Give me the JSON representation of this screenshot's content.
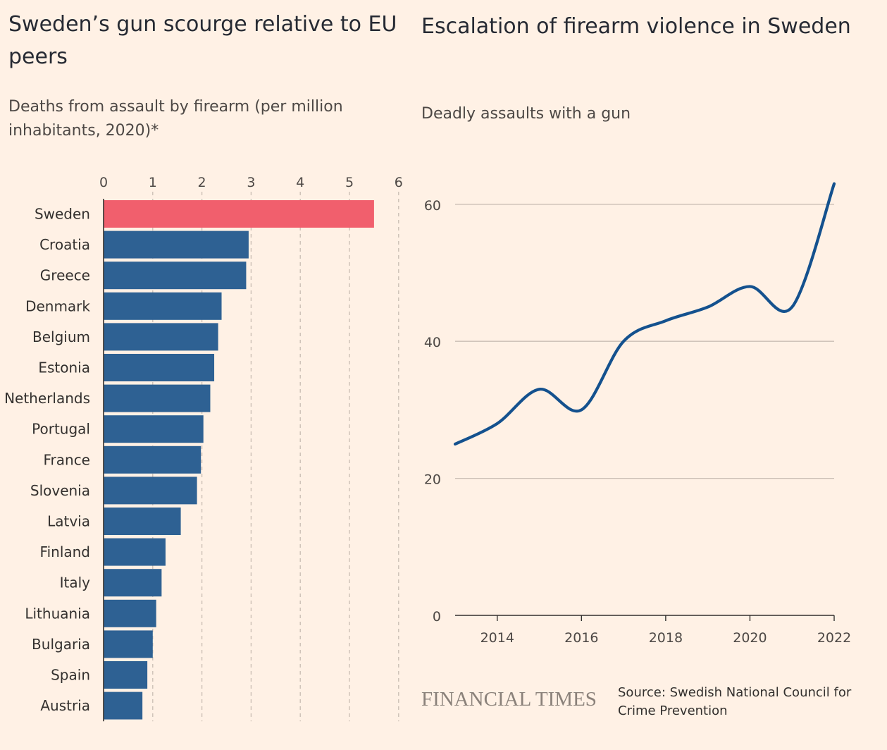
{
  "left_chart": {
    "title": "Sweden’s gun scourge relative to EU peers",
    "subtitle": "Deaths from assault by firearm (per million inhabitants, 2020)*"
  },
  "right_chart": {
    "title": "Escalation of firearm violence in Sweden",
    "subtitle": "Deadly assaults with a gun"
  },
  "footer": {
    "logo": "FINANCIAL TIMES",
    "source": "Source: Swedish National Council for Crime Prevention"
  },
  "colors": {
    "highlight": "#F15F6D",
    "bar": "#2E6193",
    "line": "#14518E",
    "gridline": "#C9BDB3",
    "axis": "#33302E"
  },
  "chart_data": [
    {
      "type": "bar",
      "orientation": "horizontal",
      "title": "Sweden’s gun scourge relative to EU peers",
      "subtitle": "Deaths from assault by firearm (per million inhabitants, 2020)*",
      "categories": [
        "Sweden",
        "Croatia",
        "Greece",
        "Denmark",
        "Belgium",
        "Estonia",
        "Netherlands",
        "Portugal",
        "France",
        "Slovenia",
        "Latvia",
        "Finland",
        "Italy",
        "Lithuania",
        "Bulgaria",
        "Spain",
        "Austria"
      ],
      "values": [
        5.5,
        2.95,
        2.9,
        2.4,
        2.33,
        2.25,
        2.17,
        2.03,
        1.98,
        1.9,
        1.57,
        1.26,
        1.18,
        1.07,
        1.0,
        0.89,
        0.79
      ],
      "highlight": "Sweden",
      "xlim": [
        0,
        6
      ],
      "xticks": [
        0,
        1,
        2,
        3,
        4,
        5,
        6
      ],
      "grid": "vertical dashed",
      "xaxis_position": "top"
    },
    {
      "type": "line",
      "title": "Escalation of firearm violence in Sweden",
      "subtitle": "Deadly assaults with a gun",
      "x": [
        2013,
        2014,
        2015,
        2016,
        2017,
        2018,
        2019,
        2020,
        2021,
        2022
      ],
      "y": [
        25,
        28,
        33,
        30,
        40,
        43,
        45,
        48,
        45,
        63
      ],
      "xlim": [
        2013,
        2022
      ],
      "ylim": [
        0,
        63
      ],
      "xticks": [
        2014,
        2016,
        2018,
        2020,
        2022
      ],
      "yticks": [
        0,
        20,
        40,
        60
      ],
      "grid": "horizontal",
      "curve": "smooth"
    }
  ]
}
